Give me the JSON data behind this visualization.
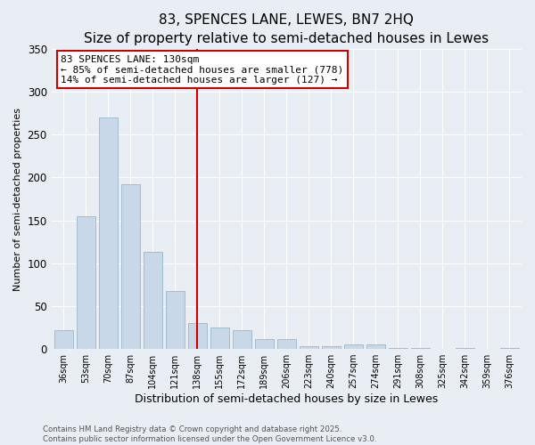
{
  "title": "83, SPENCES LANE, LEWES, BN7 2HQ",
  "subtitle": "Size of property relative to semi-detached houses in Lewes",
  "xlabel": "Distribution of semi-detached houses by size in Lewes",
  "ylabel": "Number of semi-detached properties",
  "categories": [
    "36sqm",
    "53sqm",
    "70sqm",
    "87sqm",
    "104sqm",
    "121sqm",
    "138sqm",
    "155sqm",
    "172sqm",
    "189sqm",
    "206sqm",
    "223sqm",
    "240sqm",
    "257sqm",
    "274sqm",
    "291sqm",
    "308sqm",
    "325sqm",
    "342sqm",
    "359sqm",
    "376sqm"
  ],
  "values": [
    22,
    155,
    270,
    192,
    113,
    68,
    30,
    25,
    22,
    12,
    11,
    3,
    3,
    5,
    5,
    1,
    1,
    0,
    1,
    0,
    1
  ],
  "bar_color": "#c8d8e8",
  "bar_edgecolor": "#9ab8cc",
  "property_line_x": 6.0,
  "annotation_text": "83 SPENCES LANE: 130sqm\n← 85% of semi-detached houses are smaller (778)\n14% of semi-detached houses are larger (127) →",
  "box_color": "#ffffff",
  "box_edgecolor": "#cc0000",
  "line_color": "#cc0000",
  "ylim": [
    0,
    350
  ],
  "yticks": [
    0,
    50,
    100,
    150,
    200,
    250,
    300,
    350
  ],
  "footnote": "Contains HM Land Registry data © Crown copyright and database right 2025.\nContains public sector information licensed under the Open Government Licence v3.0.",
  "background_color": "#e8eef4",
  "grid_color": "#ffffff",
  "title_fontsize": 11,
  "subtitle_fontsize": 9,
  "ylabel_fontsize": 8,
  "xlabel_fontsize": 9,
  "annot_fontsize": 8
}
